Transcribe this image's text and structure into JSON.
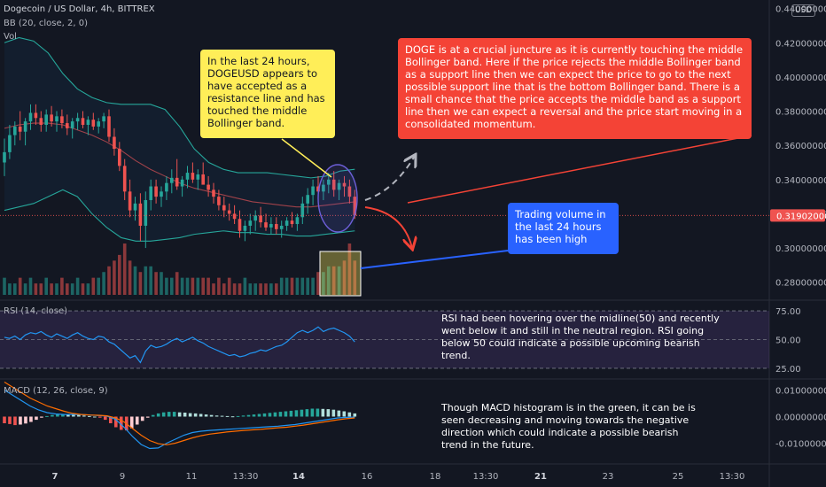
{
  "header": {
    "symbol_line": "Dogecoin / US Dollar, 4h, BITTREX",
    "bb_line": "BB (20, close, 2, 0)",
    "vol_line": "Vol",
    "rsi_line": "RSI (14, close)",
    "macd_line": "MACD (12, 26, close, 9)"
  },
  "currency_badge": "USD",
  "colors": {
    "background": "#131722",
    "up": "#26a69a",
    "down": "#ef5350",
    "bb_band": "#26a69a",
    "bb_basis": "#a0424a",
    "rsi_line": "#2196f3",
    "macd_line": "#2196f3",
    "signal_line": "#ff6d00",
    "price_badge": "#ef5350",
    "yellow_note": "#ffee58",
    "red_note": "#f44336",
    "blue_note": "#2962ff"
  },
  "notes": {
    "yellow": "In the last 24 hours, DOGEUSD appears to have accepted as a resistance line and has touched the middle Bollinger band.",
    "red": "DOGE is at a crucial juncture as it is currently touching the middle Bollinger band. Here if the price rejects the middle Bollinger band as a support line then we can expect the price to go to the next possible support line that is the bottom Bollinger band. There is a small chance that the price accepts the middle band as a support line then we can expect a reversal and the price start moving in a consolidated momentum.",
    "blue": "Trading volume in the last 24 hours has been high",
    "rsi": "RSI had been hovering over the midline(50) and recently went below it and still in the neutral region. RSI going below 50 could indicate a possible upcoming bearish trend.",
    "macd": "Though MACD histogram is in the green, it can be is seen decreasing and moving towards the negative direction which could indicate a possible bearish trend in the future."
  },
  "chart_data": [
    {
      "type": "candlestick",
      "title": "Dogecoin / US Dollar, 4h, BITTREX",
      "x_ticks": [
        "7",
        "9",
        "11",
        "13:30",
        "14",
        "16",
        "18",
        "13:30",
        "21",
        "23",
        "25",
        "13:30"
      ],
      "y_ticks": [
        0.44,
        0.42,
        0.4,
        0.38,
        0.36,
        0.34,
        0.32,
        0.3,
        0.28
      ],
      "y_tick_labels": [
        "0.44000000",
        "0.42000000",
        "0.40000000",
        "0.38000000",
        "0.36000000",
        "0.34000000",
        "0.32000000",
        "0.30000000",
        "0.28000000"
      ],
      "ylim": [
        0.27,
        0.445
      ],
      "current_price": 0.31902,
      "current_price_label": "0.31902000",
      "candles": [
        {
          "o": 0.35,
          "h": 0.364,
          "l": 0.342,
          "c": 0.356
        },
        {
          "o": 0.356,
          "h": 0.372,
          "l": 0.352,
          "c": 0.366
        },
        {
          "o": 0.366,
          "h": 0.374,
          "l": 0.36,
          "c": 0.371
        },
        {
          "o": 0.371,
          "h": 0.38,
          "l": 0.363,
          "c": 0.368
        },
        {
          "o": 0.368,
          "h": 0.376,
          "l": 0.36,
          "c": 0.374
        },
        {
          "o": 0.374,
          "h": 0.384,
          "l": 0.369,
          "c": 0.379
        },
        {
          "o": 0.379,
          "h": 0.384,
          "l": 0.372,
          "c": 0.376
        },
        {
          "o": 0.376,
          "h": 0.38,
          "l": 0.368,
          "c": 0.372
        },
        {
          "o": 0.372,
          "h": 0.381,
          "l": 0.368,
          "c": 0.378
        },
        {
          "o": 0.378,
          "h": 0.383,
          "l": 0.371,
          "c": 0.374
        },
        {
          "o": 0.374,
          "h": 0.38,
          "l": 0.368,
          "c": 0.377
        },
        {
          "o": 0.377,
          "h": 0.381,
          "l": 0.37,
          "c": 0.373
        },
        {
          "o": 0.373,
          "h": 0.378,
          "l": 0.366,
          "c": 0.37
        },
        {
          "o": 0.37,
          "h": 0.376,
          "l": 0.364,
          "c": 0.374
        },
        {
          "o": 0.374,
          "h": 0.379,
          "l": 0.369,
          "c": 0.376
        },
        {
          "o": 0.376,
          "h": 0.38,
          "l": 0.37,
          "c": 0.372
        },
        {
          "o": 0.372,
          "h": 0.377,
          "l": 0.366,
          "c": 0.375
        },
        {
          "o": 0.375,
          "h": 0.379,
          "l": 0.369,
          "c": 0.371
        },
        {
          "o": 0.371,
          "h": 0.376,
          "l": 0.367,
          "c": 0.374
        },
        {
          "o": 0.374,
          "h": 0.379,
          "l": 0.37,
          "c": 0.377
        },
        {
          "o": 0.377,
          "h": 0.381,
          "l": 0.362,
          "c": 0.365
        },
        {
          "o": 0.365,
          "h": 0.37,
          "l": 0.354,
          "c": 0.358
        },
        {
          "o": 0.358,
          "h": 0.362,
          "l": 0.345,
          "c": 0.348
        },
        {
          "o": 0.348,
          "h": 0.352,
          "l": 0.328,
          "c": 0.333
        },
        {
          "o": 0.333,
          "h": 0.34,
          "l": 0.318,
          "c": 0.322
        },
        {
          "o": 0.322,
          "h": 0.33,
          "l": 0.316,
          "c": 0.326
        },
        {
          "o": 0.326,
          "h": 0.332,
          "l": 0.304,
          "c": 0.313
        },
        {
          "o": 0.313,
          "h": 0.333,
          "l": 0.3,
          "c": 0.328
        },
        {
          "o": 0.328,
          "h": 0.34,
          "l": 0.322,
          "c": 0.336
        },
        {
          "o": 0.336,
          "h": 0.34,
          "l": 0.326,
          "c": 0.33
        },
        {
          "o": 0.33,
          "h": 0.336,
          "l": 0.324,
          "c": 0.333
        },
        {
          "o": 0.333,
          "h": 0.342,
          "l": 0.328,
          "c": 0.338
        },
        {
          "o": 0.338,
          "h": 0.346,
          "l": 0.332,
          "c": 0.341
        },
        {
          "o": 0.341,
          "h": 0.352,
          "l": 0.334,
          "c": 0.336
        },
        {
          "o": 0.336,
          "h": 0.342,
          "l": 0.33,
          "c": 0.34
        },
        {
          "o": 0.34,
          "h": 0.348,
          "l": 0.335,
          "c": 0.344
        },
        {
          "o": 0.344,
          "h": 0.35,
          "l": 0.338,
          "c": 0.34
        },
        {
          "o": 0.34,
          "h": 0.346,
          "l": 0.334,
          "c": 0.343
        },
        {
          "o": 0.343,
          "h": 0.35,
          "l": 0.338,
          "c": 0.337
        },
        {
          "o": 0.337,
          "h": 0.342,
          "l": 0.33,
          "c": 0.334
        },
        {
          "o": 0.334,
          "h": 0.338,
          "l": 0.326,
          "c": 0.33
        },
        {
          "o": 0.33,
          "h": 0.334,
          "l": 0.322,
          "c": 0.325
        },
        {
          "o": 0.325,
          "h": 0.33,
          "l": 0.318,
          "c": 0.322
        },
        {
          "o": 0.322,
          "h": 0.326,
          "l": 0.316,
          "c": 0.32
        },
        {
          "o": 0.32,
          "h": 0.325,
          "l": 0.314,
          "c": 0.317
        },
        {
          "o": 0.317,
          "h": 0.322,
          "l": 0.306,
          "c": 0.31
        },
        {
          "o": 0.31,
          "h": 0.316,
          "l": 0.304,
          "c": 0.313
        },
        {
          "o": 0.313,
          "h": 0.32,
          "l": 0.308,
          "c": 0.316
        },
        {
          "o": 0.316,
          "h": 0.322,
          "l": 0.31,
          "c": 0.319
        },
        {
          "o": 0.319,
          "h": 0.324,
          "l": 0.312,
          "c": 0.315
        },
        {
          "o": 0.315,
          "h": 0.32,
          "l": 0.31,
          "c": 0.312
        },
        {
          "o": 0.312,
          "h": 0.318,
          "l": 0.308,
          "c": 0.314
        },
        {
          "o": 0.314,
          "h": 0.318,
          "l": 0.308,
          "c": 0.311
        },
        {
          "o": 0.311,
          "h": 0.316,
          "l": 0.306,
          "c": 0.313
        },
        {
          "o": 0.313,
          "h": 0.318,
          "l": 0.31,
          "c": 0.316
        },
        {
          "o": 0.316,
          "h": 0.321,
          "l": 0.312,
          "c": 0.314
        },
        {
          "o": 0.314,
          "h": 0.32,
          "l": 0.31,
          "c": 0.318
        },
        {
          "o": 0.318,
          "h": 0.33,
          "l": 0.314,
          "c": 0.326
        },
        {
          "o": 0.326,
          "h": 0.335,
          "l": 0.32,
          "c": 0.331
        },
        {
          "o": 0.331,
          "h": 0.34,
          "l": 0.325,
          "c": 0.336
        },
        {
          "o": 0.336,
          "h": 0.342,
          "l": 0.328,
          "c": 0.333
        },
        {
          "o": 0.333,
          "h": 0.34,
          "l": 0.328,
          "c": 0.337
        },
        {
          "o": 0.337,
          "h": 0.344,
          "l": 0.332,
          "c": 0.34
        },
        {
          "o": 0.34,
          "h": 0.345,
          "l": 0.33,
          "c": 0.334
        },
        {
          "o": 0.334,
          "h": 0.34,
          "l": 0.328,
          "c": 0.338
        },
        {
          "o": 0.338,
          "h": 0.342,
          "l": 0.33,
          "c": 0.336
        },
        {
          "o": 0.336,
          "h": 0.34,
          "l": 0.326,
          "c": 0.33
        },
        {
          "o": 0.33,
          "h": 0.334,
          "l": 0.317,
          "c": 0.319
        }
      ],
      "bollinger": {
        "upper": [
          0.42,
          0.423,
          0.421,
          0.414,
          0.402,
          0.393,
          0.388,
          0.385,
          0.384,
          0.384,
          0.384,
          0.381,
          0.371,
          0.358,
          0.35,
          0.346,
          0.344,
          0.344,
          0.344,
          0.343,
          0.342,
          0.341,
          0.342,
          0.345,
          0.346
        ],
        "basis": [
          0.37,
          0.372,
          0.373,
          0.373,
          0.372,
          0.369,
          0.366,
          0.362,
          0.357,
          0.351,
          0.346,
          0.342,
          0.338,
          0.335,
          0.333,
          0.331,
          0.329,
          0.327,
          0.326,
          0.325,
          0.324,
          0.324,
          0.325,
          0.326,
          0.327
        ],
        "lower": [
          0.322,
          0.324,
          0.326,
          0.33,
          0.334,
          0.33,
          0.32,
          0.312,
          0.306,
          0.304,
          0.304,
          0.305,
          0.306,
          0.308,
          0.309,
          0.31,
          0.309,
          0.309,
          0.308,
          0.308,
          0.307,
          0.307,
          0.308,
          0.309,
          0.31
        ]
      }
    },
    {
      "type": "bar",
      "title": "Vol",
      "values": [
        3,
        2,
        2,
        3,
        2,
        3,
        2,
        2,
        3,
        2,
        2,
        3,
        2,
        2,
        3,
        2,
        2,
        3,
        3,
        4,
        5,
        6,
        7,
        9,
        6,
        5,
        4,
        5,
        5,
        4,
        4,
        3,
        3,
        4,
        3,
        3,
        3,
        3,
        3,
        3,
        2,
        3,
        2,
        3,
        2,
        2,
        3,
        2,
        2,
        2,
        2,
        2,
        2,
        3,
        3,
        3,
        3,
        3,
        3,
        3,
        4,
        4,
        5,
        5,
        5,
        6,
        9,
        6
      ],
      "directions": [
        "u",
        "u",
        "u",
        "d",
        "u",
        "u",
        "d",
        "d",
        "u",
        "d",
        "u",
        "d",
        "d",
        "u",
        "u",
        "d",
        "u",
        "d",
        "u",
        "u",
        "d",
        "d",
        "d",
        "d",
        "d",
        "u",
        "d",
        "u",
        "u",
        "d",
        "u",
        "u",
        "u",
        "d",
        "u",
        "u",
        "d",
        "u",
        "d",
        "d",
        "d",
        "d",
        "d",
        "d",
        "d",
        "d",
        "u",
        "u",
        "u",
        "d",
        "d",
        "u",
        "d",
        "u",
        "u",
        "d",
        "u",
        "u",
        "u",
        "u",
        "d",
        "u",
        "u",
        "d",
        "u",
        "d",
        "d",
        "d"
      ]
    },
    {
      "type": "line",
      "title": "RSI (14, close)",
      "y_ticks": [
        75,
        50,
        25
      ],
      "y_tick_labels": [
        "75.00",
        "50.00",
        "25.00"
      ],
      "ylim": [
        18,
        82
      ],
      "series": [
        {
          "values": [
            52,
            51,
            53,
            50,
            54,
            56,
            55,
            57,
            54,
            52,
            55,
            53,
            51,
            54,
            56,
            53,
            51,
            50,
            53,
            52,
            48,
            46,
            42,
            38,
            34,
            36,
            30,
            40,
            45,
            43,
            44,
            46,
            49,
            51,
            48,
            50,
            52,
            49,
            47,
            44,
            42,
            40,
            38,
            36,
            37,
            35,
            36,
            38,
            39,
            41,
            40,
            42,
            44,
            45,
            48,
            52,
            56,
            58,
            56,
            58,
            61,
            57,
            59,
            60,
            58,
            56,
            53,
            48
          ]
        }
      ]
    },
    {
      "type": "line",
      "title": "MACD (12, 26, close, 9)",
      "y_ticks": [
        0.01,
        0,
        -0.01
      ],
      "y_tick_labels": [
        "0.01000000",
        "0.00000000",
        "-0.01000000"
      ],
      "ylim": [
        -0.0165,
        0.0135
      ],
      "histogram": [
        -0.0025,
        -0.0028,
        -0.0032,
        -0.003,
        -0.0026,
        -0.002,
        -0.0012,
        -0.0004,
        0.0002,
        0.0006,
        0.0008,
        0.0009,
        0.0008,
        0.0007,
        0.0006,
        0.0004,
        0.0002,
        0.0,
        -0.0004,
        -0.0012,
        -0.0025,
        -0.004,
        -0.005,
        -0.0052,
        -0.0044,
        -0.003,
        -0.0016,
        -0.0004,
        0.0006,
        0.0012,
        0.0016,
        0.0018,
        0.0018,
        0.0016,
        0.0015,
        0.0013,
        0.0012,
        0.001,
        0.0008,
        0.0006,
        0.0004,
        0.0003,
        0.0002,
        0.0001,
        0.0002,
        0.0004,
        0.0006,
        0.0008,
        0.001,
        0.0012,
        0.0014,
        0.0016,
        0.0018,
        0.002,
        0.0022,
        0.0024,
        0.0026,
        0.0028,
        0.003,
        0.003,
        0.0029,
        0.0028,
        0.0026,
        0.0023,
        0.002,
        0.0016,
        0.0012
      ],
      "series": [
        {
          "values": [
            0.01,
            0.008,
            0.006,
            0.004,
            0.0025,
            0.0015,
            0.001,
            0.0008,
            0.0008,
            0.0008,
            0.0006,
            0.0004,
            0.0002,
            -0.001,
            -0.004,
            -0.0075,
            -0.0105,
            -0.012,
            -0.0118,
            -0.01,
            -0.0085,
            -0.007,
            -0.006,
            -0.0055,
            -0.0052,
            -0.005,
            -0.0048,
            -0.0046,
            -0.0044,
            -0.0042,
            -0.004,
            -0.0038,
            -0.0036,
            -0.0033,
            -0.003,
            -0.0025,
            -0.002,
            -0.0015,
            -0.001,
            -0.0005,
            -0.0003,
            -0.0002
          ]
        },
        {
          "values": [
            0.013,
            0.011,
            0.009,
            0.007,
            0.0055,
            0.004,
            0.003,
            0.002,
            0.0012,
            0.0008,
            0.0006,
            0.0005,
            0.0003,
            -0.0005,
            -0.002,
            -0.0045,
            -0.007,
            -0.009,
            -0.0102,
            -0.0106,
            -0.01,
            -0.009,
            -0.008,
            -0.0072,
            -0.0066,
            -0.0062,
            -0.0058,
            -0.0055,
            -0.0052,
            -0.005,
            -0.0048,
            -0.0045,
            -0.0042,
            -0.004,
            -0.0036,
            -0.0032,
            -0.0027,
            -0.0022,
            -0.0017,
            -0.0012,
            -0.0008,
            -0.0005
          ]
        }
      ]
    }
  ]
}
